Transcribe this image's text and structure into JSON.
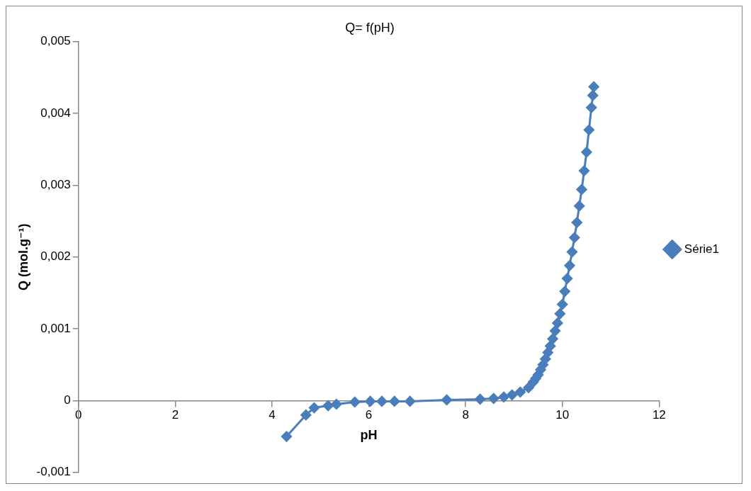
{
  "chart_data": {
    "type": "line",
    "title": "Q= f(pH)",
    "xlabel": "pH",
    "ylabel": "Q (mol.g⁻¹)",
    "xlim": [
      0,
      12
    ],
    "xticks": [
      0,
      2,
      4,
      6,
      8,
      10,
      12
    ],
    "ylim": [
      -0.001,
      0.005
    ],
    "yticks": [
      {
        "value": -0.001,
        "label": "-0,001"
      },
      {
        "value": 0,
        "label": "0"
      },
      {
        "value": 0.001,
        "label": "0,001"
      },
      {
        "value": 0.002,
        "label": "0,002"
      },
      {
        "value": 0.003,
        "label": "0,003"
      },
      {
        "value": 0.004,
        "label": "0,004"
      },
      {
        "value": 0.005,
        "label": "0,005"
      }
    ],
    "grid": false,
    "legend": "right",
    "marker": "diamond",
    "line_style": "solid",
    "series": [
      {
        "name": "Série1",
        "color": "#4a7ebb",
        "x": [
          4.3,
          4.7,
          4.87,
          5.16,
          5.33,
          5.71,
          6.03,
          6.27,
          6.53,
          6.85,
          7.61,
          8.3,
          8.58,
          8.79,
          8.96,
          9.13,
          9.3,
          9.4,
          9.45,
          9.5,
          9.55,
          9.6,
          9.65,
          9.7,
          9.75,
          9.8,
          9.85,
          9.9,
          9.95,
          10.0,
          10.05,
          10.1,
          10.15,
          10.2,
          10.25,
          10.3,
          10.35,
          10.4,
          10.45,
          10.5,
          10.55,
          10.6,
          10.63,
          10.65
        ],
        "values": [
          -0.0005,
          -0.0002,
          -0.0001,
          -7e-05,
          -5e-05,
          -2e-05,
          -1e-05,
          -1e-05,
          -1e-05,
          -1e-05,
          1e-05,
          2e-05,
          3e-05,
          5e-05,
          8e-05,
          0.00012,
          0.00018,
          0.00026,
          0.00031,
          0.00036,
          0.00043,
          0.0005,
          0.00058,
          0.00067,
          0.00076,
          0.00086,
          0.00097,
          0.00108,
          0.00121,
          0.00134,
          0.00152,
          0.0017,
          0.00188,
          0.00207,
          0.00227,
          0.00248,
          0.00271,
          0.00294,
          0.0032,
          0.00346,
          0.00377,
          0.00408,
          0.00425,
          0.00437
        ]
      }
    ]
  }
}
